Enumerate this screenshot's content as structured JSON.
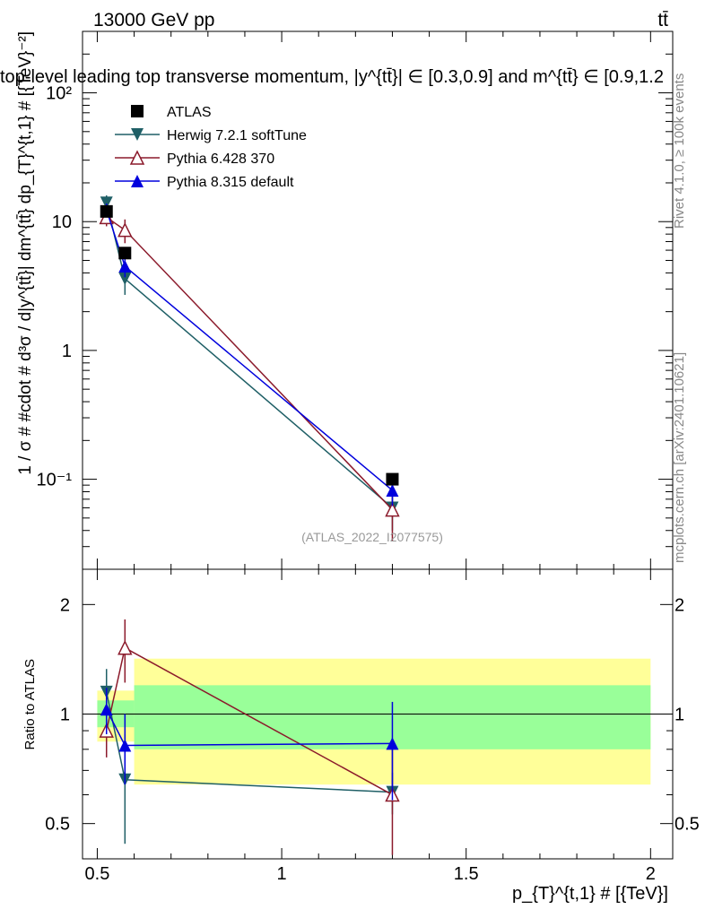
{
  "header": {
    "energy_label": "13000 GeV pp",
    "process_label": "tt̄",
    "plot_title": "top-level leading top transverse momentum, |y^{tt̄}| ∈ [0.3,0.9] and m^{tt̄} ∈ [0.9,1.2",
    "analysis_id": "(ATLAS_2022_I2077575)",
    "side_rivet": "Rivet 4.1.0, ≥ 100k events",
    "side_mcplots": "mcplots.cern.ch [arXiv:2401.10621]"
  },
  "axes": {
    "main_ylabel": "1 / σ # #cdot # d³σ / d|y^{tt̄}| dm^{tt̄} dp_{T}^{t,1} # [{TeV}⁻²]",
    "ratio_ylabel": "Ratio to ATLAS",
    "xlabel": "p_{T}^{t,1} # [{TeV}]",
    "x_ticks": [
      "0.5",
      "1",
      "1.5",
      "2"
    ],
    "main_y_ticks": [
      "10⁻¹",
      "1",
      "10",
      "10²"
    ],
    "ratio_y_ticks": [
      "0.5",
      "1",
      "2"
    ]
  },
  "colors": {
    "atlas": "#000000",
    "herwig": "#1f5f66",
    "pythia6": "#8b1a2b",
    "pythia8": "#0000dd",
    "band_inner": "#99ff99",
    "band_outer": "#ffff99"
  },
  "chart_data": [
    {
      "type": "scatter",
      "scale": "log",
      "xlim": [
        0.46,
        2.06
      ],
      "ylim": [
        0.02,
        300
      ],
      "series": [
        {
          "name": "ATLAS",
          "x": [
            0.525,
            0.575,
            1.3
          ],
          "y": [
            12.0,
            5.7,
            0.1
          ],
          "yerr": [
            0.5,
            0.3,
            0.007
          ],
          "marker": "square",
          "color": "#000000"
        },
        {
          "name": "Herwig 7.2.1 softTune",
          "x": [
            0.525,
            0.575,
            1.3
          ],
          "y": [
            14.0,
            3.6,
            0.06
          ],
          "yerr": [
            2.0,
            0.9,
            0.02
          ],
          "marker": "triangle-down",
          "color": "#1f5f66"
        },
        {
          "name": "Pythia 6.428 370",
          "x": [
            0.525,
            0.575,
            1.3
          ],
          "y": [
            10.8,
            8.6,
            0.058
          ],
          "yerr": [
            1.6,
            1.8,
            0.025
          ],
          "marker": "triangle-up-open",
          "color": "#8b1a2b"
        },
        {
          "name": "Pythia 8.315 default",
          "x": [
            0.525,
            0.575,
            1.3
          ],
          "y": [
            12.3,
            4.5,
            0.082
          ],
          "yerr": [
            1.5,
            0.8,
            0.02
          ],
          "marker": "triangle-up",
          "color": "#0000dd"
        }
      ]
    },
    {
      "type": "scatter",
      "scale": "log",
      "xlim": [
        0.46,
        2.06
      ],
      "ylim": [
        0.4,
        2.5
      ],
      "band_bins": [
        {
          "x": [
            0.5,
            0.55
          ],
          "inner": [
            0.92,
            1.09
          ],
          "outer": [
            0.84,
            1.16
          ]
        },
        {
          "x": [
            0.55,
            0.6
          ],
          "inner": [
            0.92,
            1.09
          ],
          "outer": [
            0.84,
            1.16
          ]
        },
        {
          "x": [
            0.6,
            2.0
          ],
          "inner": [
            0.8,
            1.2
          ],
          "outer": [
            0.64,
            1.42
          ]
        }
      ],
      "series": [
        {
          "name": "Herwig 7.2.1 softTune",
          "x": [
            0.525,
            0.575,
            1.3
          ],
          "y": [
            1.15,
            0.66,
            0.61
          ],
          "yerr": [
            0.18,
            0.22,
            0.08
          ],
          "color": "#1f5f66"
        },
        {
          "name": "Pythia 6.428 370",
          "x": [
            0.525,
            0.575,
            1.3
          ],
          "y": [
            0.9,
            1.52,
            0.6
          ],
          "yerr": [
            0.14,
            0.3,
            0.25
          ],
          "color": "#8b1a2b"
        },
        {
          "name": "Pythia 8.315 default",
          "x": [
            0.525,
            0.575,
            1.3
          ],
          "y": [
            1.03,
            0.82,
            0.83
          ],
          "yerr": [
            0.15,
            0.18,
            0.25
          ],
          "color": "#0000dd"
        }
      ]
    }
  ]
}
